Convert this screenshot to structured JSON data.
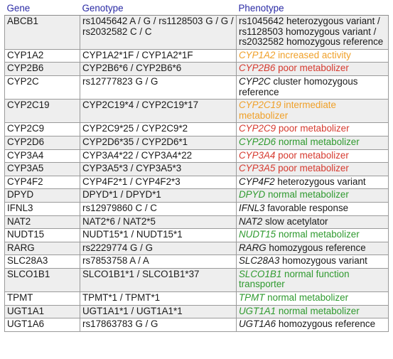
{
  "headers": {
    "gene": "Gene",
    "genotype": "Genotype",
    "phenotype": "Phenotype"
  },
  "colors": {
    "header_text": "#2a2aa5",
    "orange": "#f0a028",
    "red": "#d63a2f",
    "green": "#2f9a2f",
    "black": "#1a1a1a",
    "stripe": "#eeeeee"
  },
  "rows": [
    {
      "gene": "ABCB1",
      "genotype": "rs1045642 A / G / rs1128503 G / G / rs2032582 C / C",
      "phen_italic": "",
      "phen_text": "rs1045642 heterozygous variant / rs1128503 homozygous variant / rs2032582 homozygous reference",
      "color": "black"
    },
    {
      "gene": "CYP1A2",
      "genotype": "CYP1A2*1F / CYP1A2*1F",
      "phen_italic": "CYP1A2",
      "phen_text": " increased activity",
      "color": "orange"
    },
    {
      "gene": "CYP2B6",
      "genotype": "CYP2B6*6 / CYP2B6*6",
      "phen_italic": "CYP2B6",
      "phen_text": " poor metabolizer",
      "color": "red"
    },
    {
      "gene": "CYP2C",
      "genotype": "rs12777823 G / G",
      "phen_italic": "CYP2C",
      "phen_text": " cluster homozygous reference",
      "color": "black"
    },
    {
      "gene": "CYP2C19",
      "genotype": "CYP2C19*4 / CYP2C19*17",
      "phen_italic": "CYP2C19",
      "phen_text": " intermediate metabolizer",
      "color": "orange"
    },
    {
      "gene": "CYP2C9",
      "genotype": "CYP2C9*25 / CYP2C9*2",
      "phen_italic": "CYP2C9",
      "phen_text": " poor metabolizer",
      "color": "red"
    },
    {
      "gene": "CYP2D6",
      "genotype": "CYP2D6*35 / CYP2D6*1",
      "phen_italic": "CYP2D6",
      "phen_text": " normal metabolizer",
      "color": "green"
    },
    {
      "gene": "CYP3A4",
      "genotype": "CYP3A4*22 / CYP3A4*22",
      "phen_italic": "CYP3A4",
      "phen_text": " poor metabolizer",
      "color": "red"
    },
    {
      "gene": "CYP3A5",
      "genotype": "CYP3A5*3 / CYP3A5*3",
      "phen_italic": "CYP3A5",
      "phen_text": " poor metabolizer",
      "color": "red"
    },
    {
      "gene": "CYP4F2",
      "genotype": "CYP4F2*1 / CYP4F2*3",
      "phen_italic": "CYP4F2",
      "phen_text": " heterozygous variant",
      "color": "black"
    },
    {
      "gene": "DPYD",
      "genotype": "DPYD*1 / DPYD*1",
      "phen_italic": "DPYD",
      "phen_text": " normal metabolizer",
      "color": "green"
    },
    {
      "gene": "IFNL3",
      "genotype": "rs12979860 C / C",
      "phen_italic": "IFNL3",
      "phen_text": " favorable response",
      "color": "black"
    },
    {
      "gene": "NAT2",
      "genotype": "NAT2*6 / NAT2*5",
      "phen_italic": "NAT2",
      "phen_text": " slow acetylator",
      "color": "black"
    },
    {
      "gene": "NUDT15",
      "genotype": "NUDT15*1 / NUDT15*1",
      "phen_italic": "NUDT15",
      "phen_text": " normal metabolizer",
      "color": "green"
    },
    {
      "gene": "RARG",
      "genotype": "rs2229774 G / G",
      "phen_italic": "RARG",
      "phen_text": " homozygous reference",
      "color": "black"
    },
    {
      "gene": "SLC28A3",
      "genotype": "rs7853758 A / A",
      "phen_italic": "SLC28A3",
      "phen_text": " homozygous variant",
      "color": "black"
    },
    {
      "gene": "SLCO1B1",
      "genotype": "SLCO1B1*1 / SLCO1B1*37",
      "phen_italic": "SLCO1B1",
      "phen_text": " normal function transporter",
      "color": "green"
    },
    {
      "gene": "TPMT",
      "genotype": "TPMT*1 / TPMT*1",
      "phen_italic": "TPMT",
      "phen_text": " normal metabolizer",
      "color": "green"
    },
    {
      "gene": "UGT1A1",
      "genotype": "UGT1A1*1 / UGT1A1*1",
      "phen_italic": "UGT1A1",
      "phen_text": " normal metabolizer",
      "color": "green"
    },
    {
      "gene": "UGT1A6",
      "genotype": "rs17863783 G / G",
      "phen_italic": "UGT1A6",
      "phen_text": " homozygous reference",
      "color": "black"
    }
  ]
}
